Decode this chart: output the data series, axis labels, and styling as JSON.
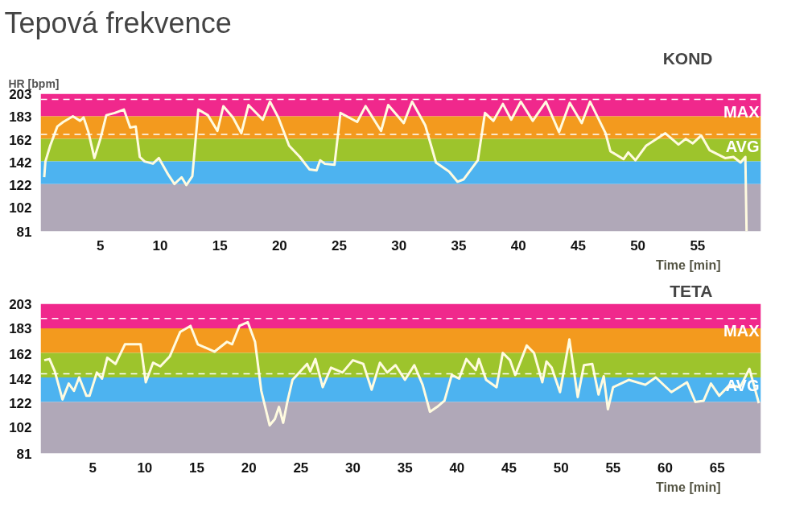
{
  "chart_data": [
    {
      "type": "line",
      "title": "Tepová frekvence",
      "subtitle": "KOND",
      "ylabel": "HR [bpm]",
      "xlabel": "Time [min]",
      "xlim": [
        0,
        60.3
      ],
      "xticks": [
        5,
        10,
        15,
        20,
        25,
        30,
        35,
        40,
        45,
        50,
        55
      ],
      "ylim": [
        81,
        203
      ],
      "yticks": [
        81,
        102,
        122,
        142,
        162,
        183,
        203
      ],
      "grid": false,
      "bands": [
        {
          "axis": "y",
          "from": 183,
          "to": 203,
          "color": "#f0288c"
        },
        {
          "axis": "y",
          "from": 163,
          "to": 183,
          "color": "#f39a1e"
        },
        {
          "axis": "y",
          "from": 143,
          "to": 163,
          "color": "#9dc42c"
        },
        {
          "axis": "y",
          "from": 123,
          "to": 143,
          "color": "#4db3f0"
        },
        {
          "axis": "y",
          "from": 81,
          "to": 123,
          "color": "#b0a8b8"
        }
      ],
      "ref_lines": [
        {
          "axis": "y",
          "value": 198,
          "label": "MAX",
          "color": "#ffffff",
          "line_style": "dashed"
        },
        {
          "axis": "y",
          "value": 167,
          "label": "AVG",
          "color": "#ffffff",
          "line_style": "dashed"
        }
      ],
      "series": [
        {
          "color": "#fffbe0",
          "x": [
            0.3,
            0.4,
            0.8,
            1.4,
            1.9,
            2.7,
            3.3,
            3.6,
            4.0,
            4.5,
            5.0,
            5.5,
            6.2,
            6.97,
            7.5,
            7.96,
            8.3,
            8.7,
            9.4,
            9.9,
            10.7,
            11.2,
            11.8,
            12.2,
            12.7,
            13.2,
            14.0,
            14.8,
            15.3,
            16.1,
            16.8,
            17.4,
            18.6,
            19.2,
            19.9,
            20.8,
            21.7,
            22.5,
            23.1,
            23.4,
            23.8,
            24.6,
            25.1,
            26.5,
            27.2,
            28.5,
            29.1,
            30.4,
            31.1,
            32.2,
            33.1,
            34.2,
            34.9,
            35.4,
            36.6,
            37.2,
            37.9,
            38.7,
            39.4,
            40.2,
            41.2,
            42.3,
            43.4,
            44.3,
            45.3,
            46.0,
            47.3,
            47.7,
            48.8,
            49.2,
            49.8,
            50.7,
            52.3,
            53.4,
            54.0,
            54.6,
            55.3,
            56.0,
            57.3,
            58.0,
            58.6,
            59.0,
            59.1
          ],
          "values": [
            129,
            143,
            157,
            174,
            178,
            183,
            179,
            182,
            169,
            146,
            163,
            184,
            186,
            189,
            173,
            174,
            147,
            143,
            141,
            146,
            131,
            123,
            129,
            122,
            130,
            189,
            184,
            170,
            192,
            182,
            168,
            193,
            180,
            196,
            182,
            157,
            147,
            136,
            135,
            144,
            141,
            140,
            186,
            178,
            192,
            170,
            193,
            177,
            196,
            175,
            142,
            134,
            125,
            127,
            144,
            186,
            179,
            194,
            180,
            196,
            179,
            196,
            169,
            195,
            177,
            196,
            168,
            152,
            145,
            151,
            144,
            157,
            168,
            158,
            163,
            159,
            166,
            153,
            146,
            147,
            142,
            147,
            81
          ]
        }
      ]
    },
    {
      "type": "line",
      "subtitle": "TETA",
      "xlabel": "Time [min]",
      "xlim": [
        0,
        69.2
      ],
      "xticks": [
        5,
        10,
        15,
        20,
        25,
        30,
        35,
        40,
        45,
        50,
        55,
        60,
        65
      ],
      "ylim": [
        81,
        203
      ],
      "yticks": [
        81,
        102,
        122,
        142,
        162,
        183,
        203
      ],
      "grid": false,
      "bands": [
        {
          "axis": "y",
          "from": 183,
          "to": 203,
          "color": "#f0288c"
        },
        {
          "axis": "y",
          "from": 163,
          "to": 183,
          "color": "#f39a1e"
        },
        {
          "axis": "y",
          "from": 143,
          "to": 163,
          "color": "#9dc42c"
        },
        {
          "axis": "y",
          "from": 123,
          "to": 143,
          "color": "#4db3f0"
        },
        {
          "axis": "y",
          "from": 81,
          "to": 123,
          "color": "#b0a8b8"
        }
      ],
      "ref_lines": [
        {
          "axis": "y",
          "value": 191,
          "label": "MAX",
          "color": "#ffffff",
          "line_style": "dashed"
        },
        {
          "axis": "y",
          "value": 146,
          "label": "AVG",
          "color": "#ffffff",
          "line_style": "dashed"
        }
      ],
      "series": [
        {
          "color": "#fffbe0",
          "x": [
            0.35,
            0.85,
            1.36,
            2.1,
            2.7,
            3.2,
            3.7,
            4.4,
            4.7,
            5.4,
            5.9,
            6.4,
            7.2,
            8.1,
            9.6,
            10.1,
            10.8,
            11.5,
            12.4,
            13.4,
            14.4,
            15.1,
            16.7,
            17.9,
            18.4,
            19.1,
            19.9,
            20.6,
            21.2,
            22.0,
            22.5,
            22.9,
            23.3,
            23.7,
            24.2,
            25.6,
            25.9,
            26.4,
            27.1,
            27.9,
            29.0,
            30.0,
            31.0,
            31.8,
            32.6,
            33.3,
            34.1,
            35.0,
            35.9,
            36.7,
            37.4,
            38.1,
            38.8,
            39.5,
            40.2,
            40.9,
            41.8,
            42.1,
            42.8,
            43.8,
            44.4,
            45.1,
            45.6,
            46.7,
            47.4,
            48.2,
            48.6,
            49.1,
            49.9,
            50.8,
            51.6,
            52.2,
            53.0,
            53.6,
            54.1,
            54.5,
            55.0,
            56.5,
            58.1,
            59.1,
            60.6,
            62.1,
            62.9,
            63.7,
            64.4,
            65.2,
            66.2,
            67.2,
            68.1,
            69.0
          ],
          "values": [
            157,
            158,
            148,
            125,
            138,
            132,
            143,
            128,
            128,
            147,
            142,
            159,
            154,
            170,
            170,
            139,
            155,
            152,
            160,
            180,
            185,
            170,
            164,
            172,
            170,
            185,
            188,
            172,
            132,
            104,
            109,
            119,
            106,
            123,
            141,
            154,
            148,
            158,
            135,
            151,
            147,
            157,
            154,
            133,
            155,
            147,
            153,
            141,
            153,
            137,
            115,
            119,
            124,
            145,
            142,
            158,
            149,
            158,
            141,
            135,
            163,
            157,
            145,
            169,
            163,
            139,
            156,
            151,
            131,
            174,
            127,
            153,
            154,
            129,
            144,
            117,
            135,
            141,
            137,
            143,
            131,
            139,
            123,
            124,
            138,
            128,
            137,
            135,
            150,
            122
          ]
        }
      ]
    }
  ]
}
